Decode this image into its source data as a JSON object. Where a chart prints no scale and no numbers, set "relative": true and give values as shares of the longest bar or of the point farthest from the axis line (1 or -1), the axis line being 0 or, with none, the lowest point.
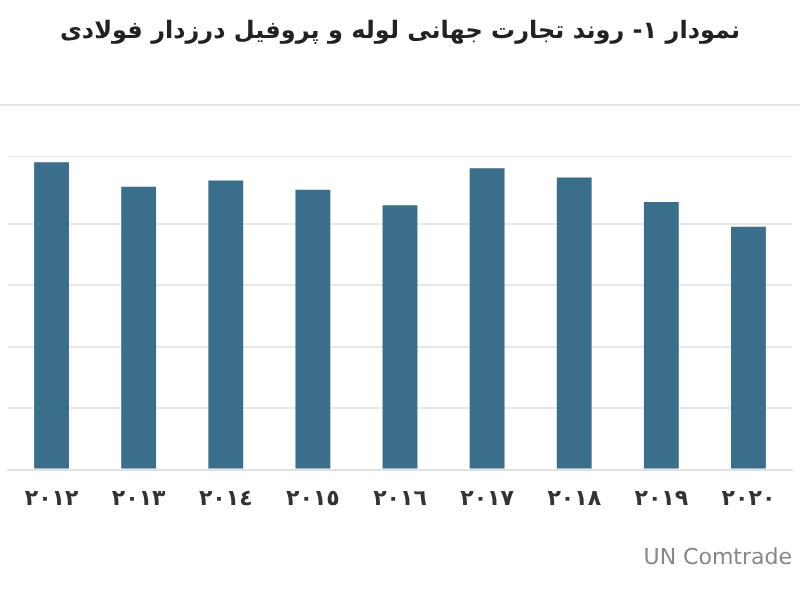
{
  "chart_data": {
    "type": "bar",
    "title": "نمودار ۱- روند تجارت جهانی لوله و پروفیل درزدار فولادی",
    "categories": [
      "٢٠١٢",
      "٢٠١٣",
      "٢٠١٤",
      "٢٠١٥",
      "٢٠١٦",
      "٢٠١٧",
      "٢٠١٨",
      "٢٠١٩",
      "٢٠٢٠"
    ],
    "values": [
      1,
      0.92,
      0.94,
      0.91,
      0.86,
      0.98,
      0.95,
      0.87,
      0.79
    ],
    "color": "#3a6e8a",
    "relative": true,
    "grid": "y",
    "annotations": [
      "UN Comtrade"
    ]
  }
}
